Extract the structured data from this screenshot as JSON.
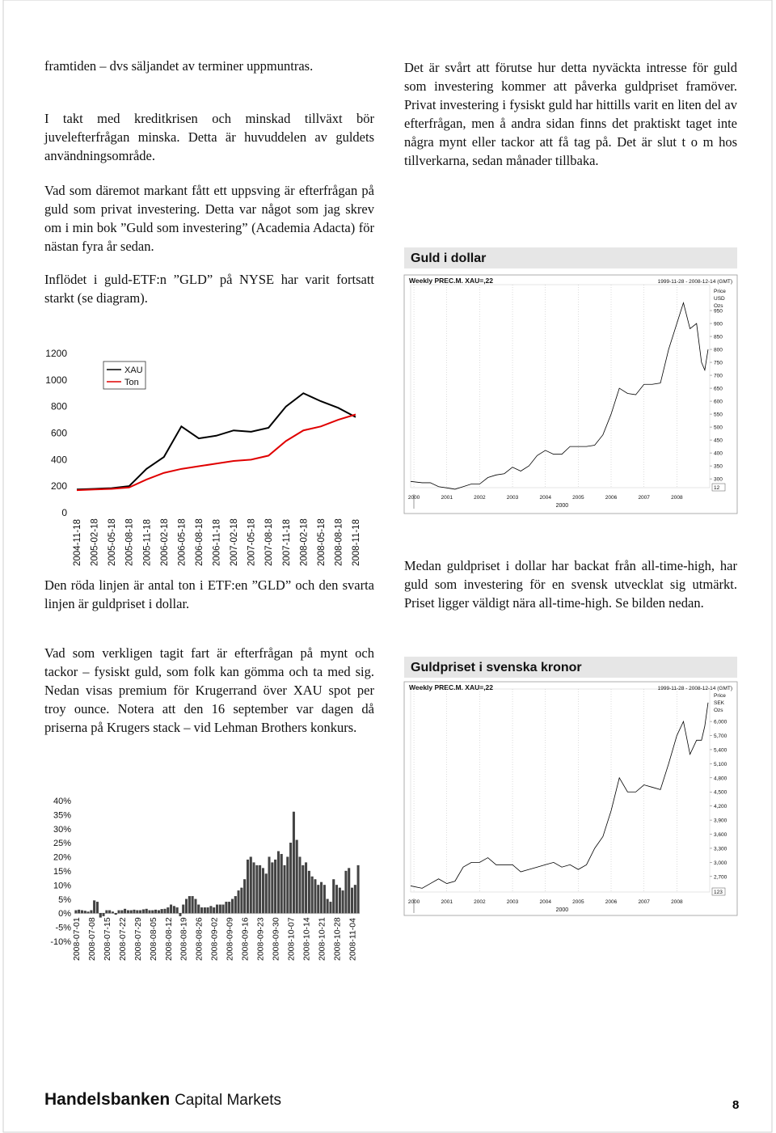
{
  "document": {
    "left": [
      "framtiden – dvs säljandet av terminer uppmuntras.",
      "I takt med kreditkrisen och minskad tillväxt bör juvelefterfrågan minska. Detta är huvuddelen av guldets användningsområde.",
      "Vad som däremot markant fått ett uppsving är efterfrågan på guld som privat investering. Detta var något som jag skrev om i min bok ”Guld som investering” (Academia Adacta) för nästan fyra år sedan.",
      "Inflödet i guld-ETF:n ”GLD” på NYSE har varit fortsatt starkt (se diagram).",
      "Den röda linjen är antal ton i ETF:en ”GLD” och den svarta linjen är guldpriset i dollar.",
      "Vad som verkligen tagit fart är efterfrågan på mynt och tackor – fysiskt guld, som folk kan gömma och ta med sig. Nedan visas premium för Krugerrand över XAU spot per troy ounce. Notera att den 16 september var dagen då priserna på Krugers stack – vid Lehman Brothers konkurs."
    ],
    "right": [
      "Det är svårt att förutse hur detta nyväckta intresse för guld som investering kommer att påverka guldpriset framöver. Privat investering i fysiskt guld har hittills varit en liten del av efterfrågan, men å andra sidan finns det praktiskt taget inte några mynt eller tackor att få tag på. Det är slut t o m hos tillverkarna, sedan månader tillbaka.",
      "Medan guldpriset i dollar har backat från all-time-high, har guld som investering för en svensk utvecklat sig utmärkt. Priset ligger väldigt nära all-time-high. Se bilden nedan."
    ],
    "footer": {
      "brand": "Handelsbanken",
      "unit": "Capital Markets",
      "page": "8"
    }
  },
  "chart_data": [
    {
      "type": "line",
      "categories": [
        "2004-11-18",
        "2005-02-18",
        "2005-05-18",
        "2005-08-18",
        "2005-11-18",
        "2006-02-18",
        "2006-05-18",
        "2006-08-18",
        "2006-11-18",
        "2007-02-18",
        "2007-05-18",
        "2007-08-18",
        "2007-11-18",
        "2008-02-18",
        "2008-05-18",
        "2008-08-18",
        "2008-11-18"
      ],
      "series": [
        {
          "name": "XAU",
          "color": "#000000",
          "values": [
            175,
            180,
            185,
            200,
            330,
            420,
            650,
            560,
            580,
            620,
            610,
            640,
            800,
            900,
            840,
            790,
            720
          ]
        },
        {
          "name": "Ton",
          "color": "#e00000",
          "values": [
            170,
            175,
            180,
            190,
            250,
            300,
            330,
            350,
            370,
            390,
            400,
            430,
            540,
            620,
            650,
            700,
            740
          ]
        }
      ],
      "ylim": [
        0,
        1200
      ],
      "yticks": [
        0,
        200,
        400,
        600,
        800,
        1000,
        1200
      ],
      "legend": "upper left"
    },
    {
      "type": "bar",
      "categories": [
        "2008-07-01",
        null,
        null,
        null,
        null,
        "2008-07-08",
        null,
        null,
        null,
        null,
        "2008-07-15",
        null,
        null,
        null,
        null,
        "2008-07-22",
        null,
        null,
        null,
        null,
        "2008-07-29",
        null,
        null,
        null,
        null,
        "2008-08-05",
        null,
        null,
        null,
        null,
        "2008-08-12",
        null,
        null,
        null,
        null,
        "2008-08-19",
        null,
        null,
        null,
        null,
        "2008-08-26",
        null,
        null,
        null,
        null,
        "2008-09-02",
        null,
        null,
        null,
        null,
        "2008-09-09",
        null,
        null,
        null,
        null,
        "2008-09-16",
        null,
        null,
        null,
        null,
        "2008-09-23",
        null,
        null,
        null,
        null,
        "2008-09-30",
        null,
        null,
        null,
        null,
        "2008-10-07",
        null,
        null,
        null,
        null,
        "2008-10-14",
        null,
        null,
        null,
        null,
        "2008-10-21",
        null,
        null,
        null,
        null,
        "2008-10-28",
        null,
        null,
        null,
        null,
        "2008-11-04",
        null,
        null
      ],
      "values": [
        1,
        1.2,
        1,
        0.8,
        0.5,
        1,
        4.5,
        4,
        -1.5,
        -1,
        1,
        1,
        0.5,
        -0.5,
        1,
        1,
        1.5,
        1,
        1,
        1.2,
        1,
        1,
        1.3,
        1.5,
        1,
        1,
        1.2,
        1,
        1.4,
        1.5,
        2,
        3,
        2.5,
        2,
        -1,
        3,
        5,
        6,
        6,
        5,
        3,
        2,
        2,
        2,
        2.5,
        2,
        3,
        3,
        3,
        4,
        4,
        5,
        6,
        8,
        9,
        12,
        19,
        20,
        18,
        17,
        17,
        16,
        14,
        20,
        18,
        19,
        22,
        21,
        17,
        20,
        25,
        36,
        26,
        20,
        17,
        18,
        15,
        13,
        12,
        10,
        11,
        10,
        5,
        4,
        12,
        10,
        9,
        8,
        15,
        16,
        9,
        10,
        17
      ],
      "color": "#444444",
      "ylim": [
        -10,
        40
      ],
      "yticks": [
        {
          "value": -10,
          "label": "-10%"
        },
        {
          "value": -5,
          "label": "-5%"
        },
        {
          "value": 0,
          "label": "0%"
        },
        {
          "value": 5,
          "label": "5%"
        },
        {
          "value": 10,
          "label": "10%"
        },
        {
          "value": 15,
          "label": "15%"
        },
        {
          "value": 20,
          "label": "20%"
        },
        {
          "value": 25,
          "label": "25%"
        },
        {
          "value": 30,
          "label": "30%"
        },
        {
          "value": 35,
          "label": "35%"
        },
        {
          "value": 40,
          "label": "40%"
        }
      ]
    },
    {
      "type": "line",
      "title": "Guld i dollar",
      "subtitle": "Weekly PREC.M. XAU=,22",
      "date_range": "1999-11-28 - 2008-12-14 (GMT)",
      "price_label": "Price",
      "currency_label": "USD",
      "unit_label": "Ozs",
      "xlabel": "2000",
      "last_value_label": "12",
      "x": [
        1999.9,
        2000.25,
        2000.5,
        2000.75,
        2001,
        2001.25,
        2001.5,
        2001.75,
        2002,
        2002.25,
        2002.5,
        2002.75,
        2003,
        2003.25,
        2003.5,
        2003.75,
        2004,
        2004.25,
        2004.5,
        2004.75,
        2005,
        2005.25,
        2005.5,
        2005.75,
        2006,
        2006.25,
        2006.5,
        2006.75,
        2007,
        2007.25,
        2007.5,
        2007.75,
        2008,
        2008.2,
        2008.4,
        2008.6,
        2008.75,
        2008.85,
        2008.95
      ],
      "values": [
        290,
        285,
        285,
        270,
        265,
        260,
        270,
        280,
        280,
        305,
        315,
        320,
        345,
        330,
        350,
        390,
        410,
        395,
        395,
        425,
        425,
        425,
        430,
        470,
        550,
        650,
        630,
        625,
        665,
        665,
        670,
        800,
        900,
        980,
        880,
        900,
        750,
        720,
        800
      ],
      "color": "#000000",
      "xlim": [
        1999.9,
        2009.0
      ],
      "xticks": [
        2000,
        2001,
        2002,
        2003,
        2004,
        2005,
        2006,
        2007,
        2008
      ],
      "ylim": [
        266,
        1050
      ],
      "yticks": [
        300,
        350,
        400,
        450,
        500,
        550,
        600,
        650,
        700,
        750,
        800,
        850,
        900,
        950
      ]
    },
    {
      "type": "line",
      "title": "Guldpriset i svenska kronor",
      "subtitle": "Weekly PREC.M. XAU=,22",
      "date_range": "1999-11-28 - 2008-12-14 (GMT)",
      "price_label": "Price",
      "currency_label": "SEK",
      "unit_label": "Ozs",
      "xlabel": "2000",
      "last_value_label": "123",
      "x": [
        1999.9,
        2000.25,
        2000.5,
        2000.75,
        2001,
        2001.25,
        2001.5,
        2001.75,
        2002,
        2002.25,
        2002.5,
        2002.75,
        2003,
        2003.25,
        2003.5,
        2003.75,
        2004,
        2004.25,
        2004.5,
        2004.75,
        2005,
        2005.25,
        2005.5,
        2005.75,
        2006,
        2006.25,
        2006.5,
        2006.75,
        2007,
        2007.25,
        2007.5,
        2007.75,
        2008,
        2008.2,
        2008.4,
        2008.6,
        2008.75,
        2008.85,
        2008.95
      ],
      "values": [
        2500,
        2450,
        2550,
        2650,
        2550,
        2600,
        2900,
        3000,
        3000,
        3100,
        2950,
        2950,
        2950,
        2800,
        2850,
        2900,
        2950,
        3000,
        2900,
        2950,
        2850,
        2950,
        3300,
        3550,
        4100,
        4800,
        4500,
        4500,
        4650,
        4600,
        4550,
        5100,
        5700,
        6000,
        5300,
        5600,
        5600,
        5900,
        6400
      ],
      "color": "#000000",
      "xlim": [
        1999.9,
        2009.0
      ],
      "xticks": [
        2000,
        2001,
        2002,
        2003,
        2004,
        2005,
        2006,
        2007,
        2008
      ],
      "ylim": [
        2370,
        6690
      ],
      "yticks": [
        {
          "value": 2700,
          "label": "2,700"
        },
        {
          "value": 3000,
          "label": "3,000"
        },
        {
          "value": 3300,
          "label": "3,300"
        },
        {
          "value": 3600,
          "label": "3,600"
        },
        {
          "value": 3900,
          "label": "3,900"
        },
        {
          "value": 4200,
          "label": "4,200"
        },
        {
          "value": 4500,
          "label": "4,500"
        },
        {
          "value": 4800,
          "label": "4,800"
        },
        {
          "value": 5100,
          "label": "5,100"
        },
        {
          "value": 5400,
          "label": "5,400"
        },
        {
          "value": 5700,
          "label": "5,700"
        },
        {
          "value": 6000,
          "label": "6,000"
        }
      ]
    }
  ]
}
